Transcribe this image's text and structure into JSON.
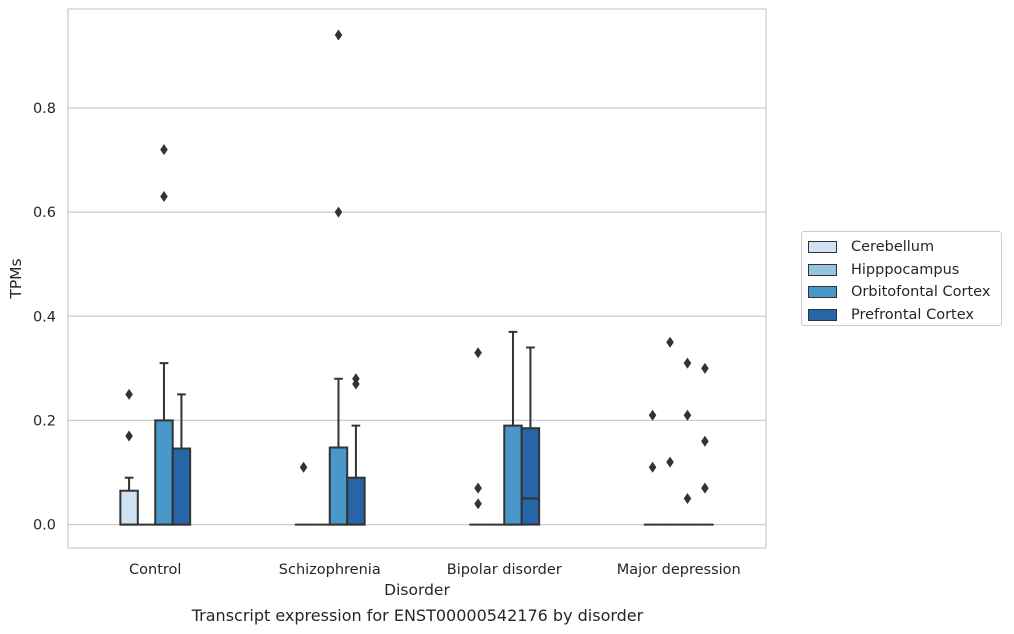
{
  "chart_data": {
    "type": "box",
    "title": "",
    "xlabel": "Disorder",
    "ylabel": "TPMs",
    "ylim": [
      -0.045,
      0.99
    ],
    "yticks": [
      0.0,
      0.2,
      0.4,
      0.6,
      0.8
    ],
    "ytick_labels": [
      "0.0",
      "0.2",
      "0.4",
      "0.6",
      "0.8"
    ],
    "grid": "horizontal",
    "legend_position": "right",
    "categories": [
      "Control",
      "Schizophrenia",
      "Bipolar disorder",
      "Major depression"
    ],
    "series": [
      {
        "name": "Cerebellum",
        "color": "#d0e1f2",
        "boxes": [
          {
            "q1": 0.0,
            "median": 0.0,
            "q3": 0.065,
            "whisker_low": 0.0,
            "whisker_high": 0.09,
            "outliers": [
              0.17,
              0.25
            ]
          },
          {
            "q1": 0.0,
            "median": 0.0,
            "q3": 0.0,
            "whisker_low": 0.0,
            "whisker_high": 0.0,
            "outliers": [
              0.11
            ]
          },
          {
            "q1": 0.0,
            "median": 0.0,
            "q3": 0.0,
            "whisker_low": 0.0,
            "whisker_high": 0.0,
            "outliers": [
              0.04,
              0.07,
              0.33
            ]
          },
          {
            "q1": 0.0,
            "median": 0.0,
            "q3": 0.0,
            "whisker_low": 0.0,
            "whisker_high": 0.0,
            "outliers": [
              0.11,
              0.21
            ]
          }
        ]
      },
      {
        "name": "Hipppocampus",
        "color": "#94c4df",
        "boxes": [
          {
            "q1": 0.0,
            "median": 0.0,
            "q3": 0.0,
            "whisker_low": 0.0,
            "whisker_high": 0.0,
            "outliers": []
          },
          {
            "q1": 0.0,
            "median": 0.0,
            "q3": 0.0,
            "whisker_low": 0.0,
            "whisker_high": 0.0,
            "outliers": []
          },
          {
            "q1": 0.0,
            "median": 0.0,
            "q3": 0.0,
            "whisker_low": 0.0,
            "whisker_high": 0.0,
            "outliers": []
          },
          {
            "q1": 0.0,
            "median": 0.0,
            "q3": 0.0,
            "whisker_low": 0.0,
            "whisker_high": 0.0,
            "outliers": [
              0.12,
              0.35
            ]
          }
        ]
      },
      {
        "name": "Orbitofontal Cortex",
        "color": "#4a98c9",
        "boxes": [
          {
            "q1": 0.0,
            "median": 0.0,
            "q3": 0.2,
            "whisker_low": 0.0,
            "whisker_high": 0.31,
            "outliers": [
              0.63,
              0.72
            ]
          },
          {
            "q1": 0.0,
            "median": 0.0,
            "q3": 0.148,
            "whisker_low": 0.0,
            "whisker_high": 0.28,
            "outliers": [
              0.6,
              0.94
            ]
          },
          {
            "q1": 0.0,
            "median": 0.0,
            "q3": 0.19,
            "whisker_low": 0.0,
            "whisker_high": 0.37,
            "outliers": []
          },
          {
            "q1": 0.0,
            "median": 0.0,
            "q3": 0.0,
            "whisker_low": 0.0,
            "whisker_high": 0.0,
            "outliers": [
              0.05,
              0.21,
              0.31
            ]
          }
        ]
      },
      {
        "name": "Prefrontal Cortex",
        "color": "#2565a8",
        "boxes": [
          {
            "q1": 0.0,
            "median": 0.0,
            "q3": 0.146,
            "whisker_low": 0.0,
            "whisker_high": 0.25,
            "outliers": []
          },
          {
            "q1": 0.0,
            "median": 0.0,
            "q3": 0.09,
            "whisker_low": 0.0,
            "whisker_high": 0.19,
            "outliers": [
              0.27,
              0.28
            ]
          },
          {
            "q1": 0.0,
            "median": 0.05,
            "q3": 0.185,
            "whisker_low": 0.0,
            "whisker_high": 0.34,
            "outliers": []
          },
          {
            "q1": 0.0,
            "median": 0.0,
            "q3": 0.0,
            "whisker_low": 0.0,
            "whisker_high": 0.0,
            "outliers": [
              0.07,
              0.16,
              0.3
            ]
          }
        ]
      }
    ]
  },
  "caption": "Transcript expression for ENST00000542176 by disorder"
}
